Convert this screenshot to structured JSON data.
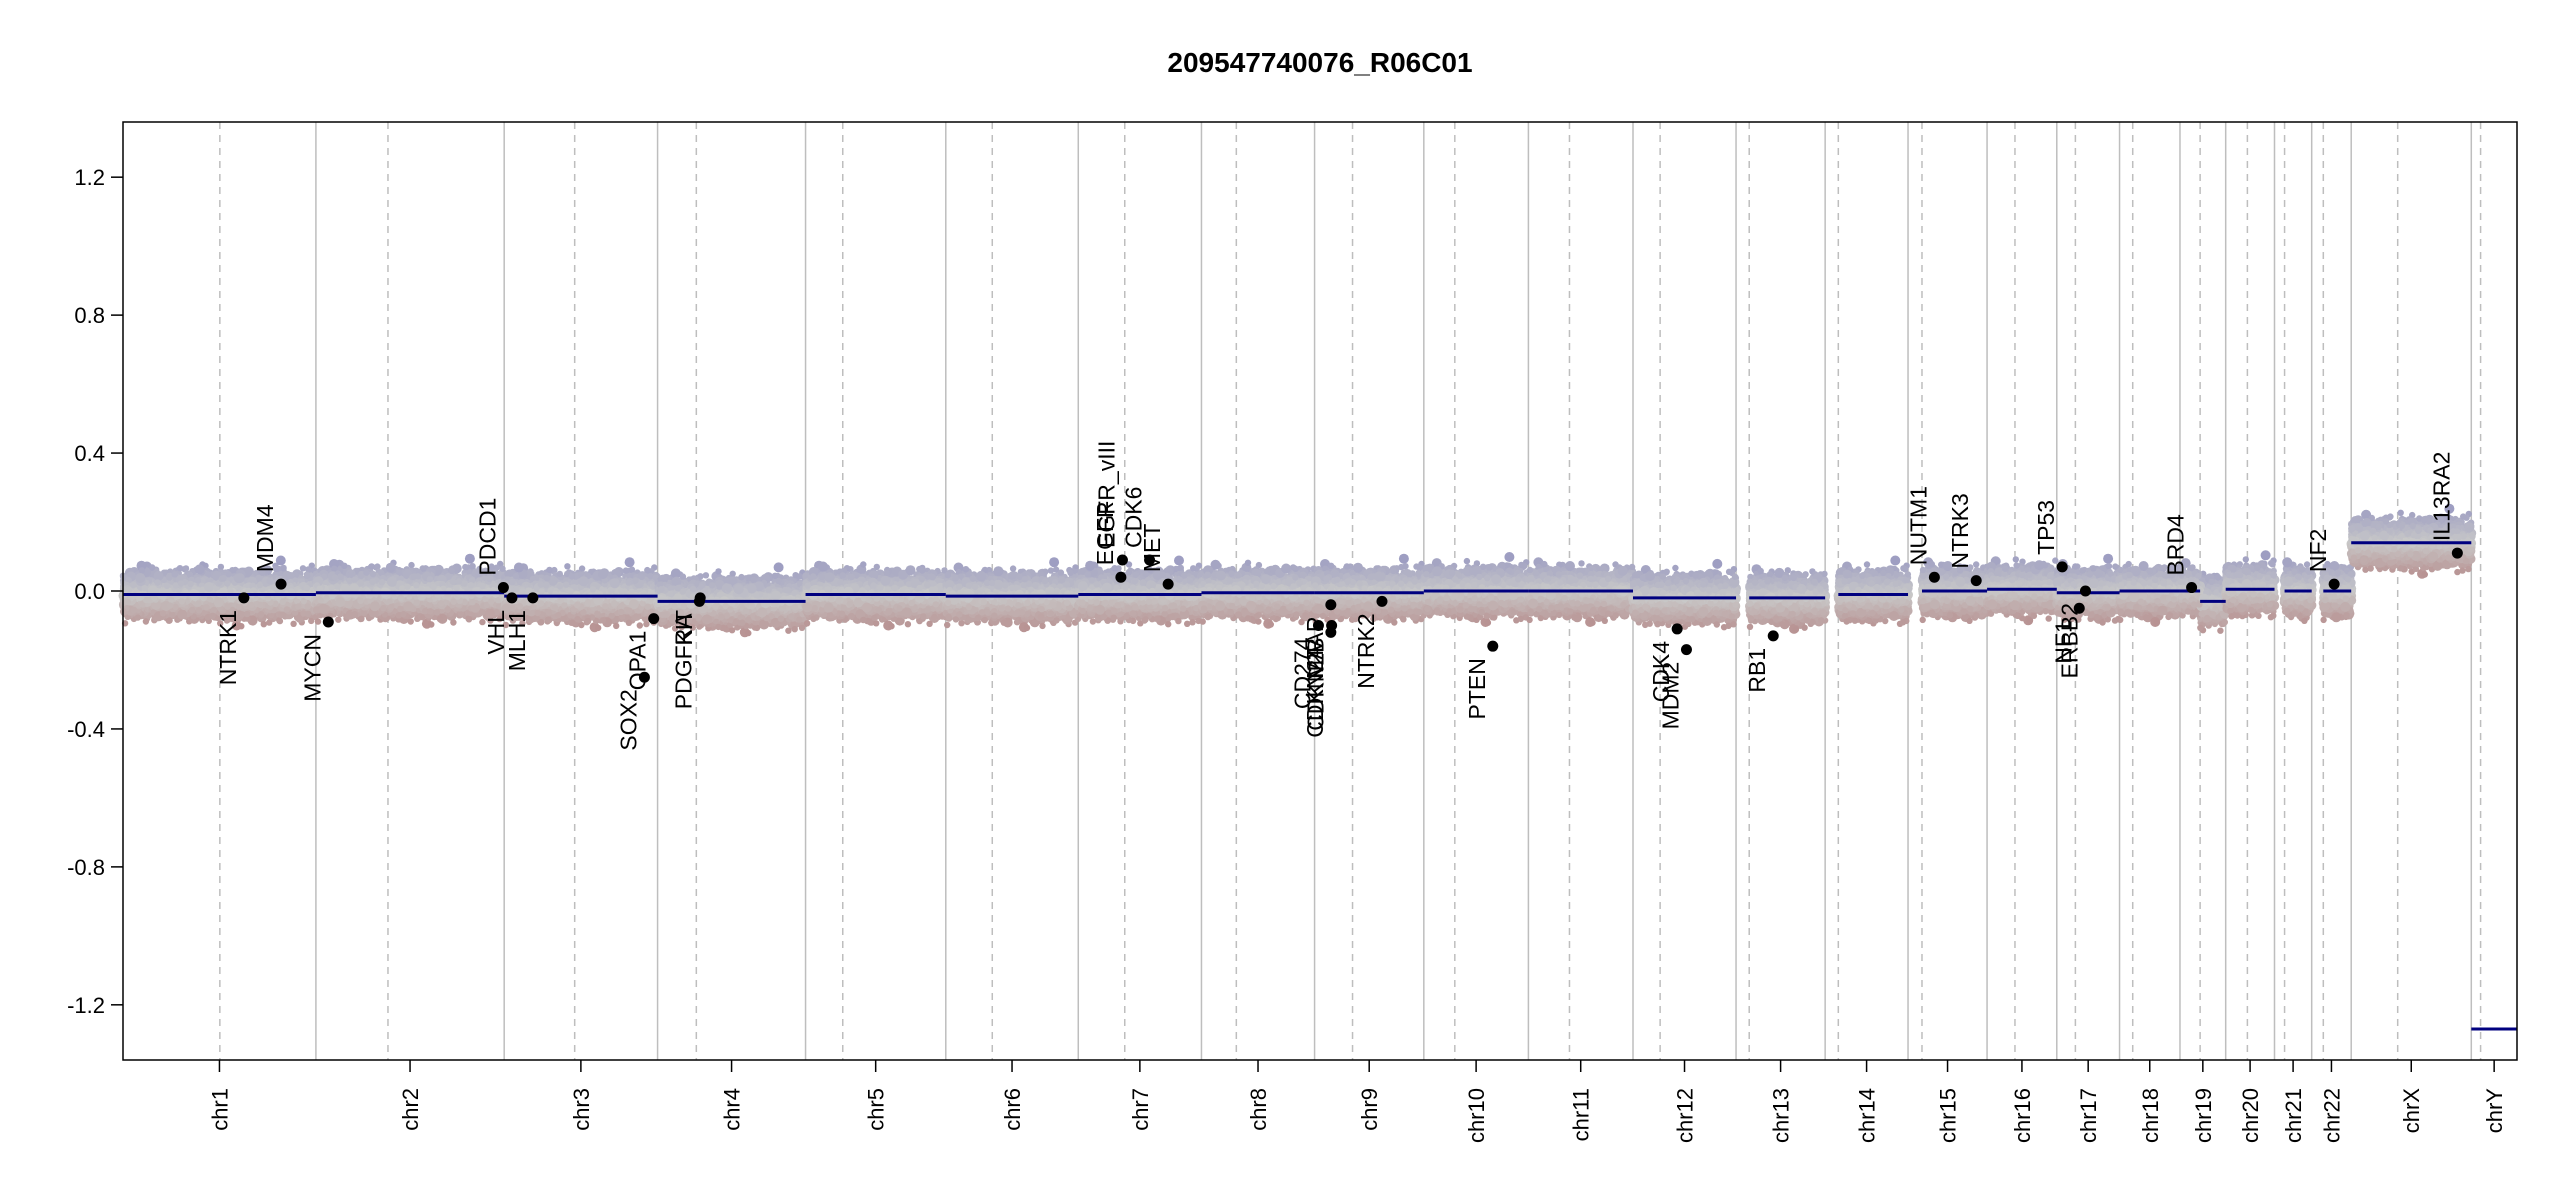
{
  "chart_data": {
    "type": "scatter",
    "title": "209547740076_R06C01",
    "xlabel": "",
    "ylabel": "",
    "ylim": [
      -1.36,
      1.36
    ],
    "yticks": [
      1.2,
      0.8,
      0.4,
      0.0,
      -0.4,
      -0.8,
      -1.2
    ],
    "ytick_labels": [
      "1.2",
      "0.8",
      "0.4",
      "0.0",
      "-0.4",
      "-0.8",
      "-1.2"
    ],
    "grid": false,
    "colors": {
      "gain": "#8c8cc0",
      "loss": "#b07878",
      "neutral": "#c8c8c8",
      "segment": "#00007f",
      "chrom_border": "#bebebe",
      "centromere": "#bebebe",
      "gene_point": "#000000"
    },
    "chromosomes": [
      {
        "name": "chr1",
        "size": 249,
        "cen": 125,
        "segments": [
          {
            "start": 0,
            "end": 249,
            "value": -0.01
          }
        ]
      },
      {
        "name": "chr2",
        "size": 243,
        "cen": 93,
        "segments": [
          {
            "start": 0,
            "end": 243,
            "value": -0.005
          }
        ]
      },
      {
        "name": "chr3",
        "size": 198,
        "cen": 91,
        "segments": [
          {
            "start": 0,
            "end": 198,
            "value": -0.015
          }
        ]
      },
      {
        "name": "chr4",
        "size": 191,
        "cen": 50,
        "segments": [
          {
            "start": 0,
            "end": 191,
            "value": -0.03
          }
        ]
      },
      {
        "name": "chr5",
        "size": 181,
        "cen": 48,
        "segments": [
          {
            "start": 0,
            "end": 181,
            "value": -0.01
          }
        ]
      },
      {
        "name": "chr6",
        "size": 171,
        "cen": 60,
        "segments": [
          {
            "start": 0,
            "end": 171,
            "value": -0.015
          }
        ]
      },
      {
        "name": "chr7",
        "size": 159,
        "cen": 60,
        "segments": [
          {
            "start": 0,
            "end": 159,
            "value": -0.01
          }
        ]
      },
      {
        "name": "chr8",
        "size": 146,
        "cen": 45,
        "segments": [
          {
            "start": 0,
            "end": 146,
            "value": -0.005
          }
        ]
      },
      {
        "name": "chr9",
        "size": 141,
        "cen": 49,
        "segments": [
          {
            "start": 0,
            "end": 141,
            "value": -0.005
          }
        ]
      },
      {
        "name": "chr10",
        "size": 135,
        "cen": 40,
        "segments": [
          {
            "start": 0,
            "end": 135,
            "value": 0.0
          }
        ]
      },
      {
        "name": "chr11",
        "size": 135,
        "cen": 53,
        "segments": [
          {
            "start": 0,
            "end": 135,
            "value": 0.0
          }
        ]
      },
      {
        "name": "chr12",
        "size": 133,
        "cen": 35,
        "segments": [
          {
            "start": 0,
            "end": 133,
            "value": -0.02
          }
        ]
      },
      {
        "name": "chr13",
        "size": 115,
        "cen": 17,
        "segments": [
          {
            "start": 17,
            "end": 115,
            "value": -0.02
          }
        ]
      },
      {
        "name": "chr14",
        "size": 107,
        "cen": 17,
        "segments": [
          {
            "start": 17,
            "end": 107,
            "value": -0.01
          }
        ]
      },
      {
        "name": "chr15",
        "size": 102,
        "cen": 18,
        "segments": [
          {
            "start": 18,
            "end": 102,
            "value": 0.0
          }
        ]
      },
      {
        "name": "chr16",
        "size": 90,
        "cen": 36,
        "segments": [
          {
            "start": 0,
            "end": 90,
            "value": 0.005
          }
        ]
      },
      {
        "name": "chr17",
        "size": 81,
        "cen": 24,
        "segments": [
          {
            "start": 0,
            "end": 81,
            "value": -0.005
          }
        ]
      },
      {
        "name": "chr18",
        "size": 78,
        "cen": 17,
        "segments": [
          {
            "start": 0,
            "end": 78,
            "value": 0.0
          }
        ]
      },
      {
        "name": "chr19",
        "size": 59,
        "cen": 26,
        "segments": [
          {
            "start": 0,
            "end": 26,
            "value": 0.0
          },
          {
            "start": 26,
            "end": 59,
            "value": -0.03
          }
        ]
      },
      {
        "name": "chr20",
        "size": 63,
        "cen": 28,
        "segments": [
          {
            "start": 0,
            "end": 63,
            "value": 0.005
          }
        ]
      },
      {
        "name": "chr21",
        "size": 48,
        "cen": 13,
        "segments": [
          {
            "start": 13,
            "end": 48,
            "value": 0.0
          }
        ]
      },
      {
        "name": "chr22",
        "size": 51,
        "cen": 15,
        "segments": [
          {
            "start": 15,
            "end": 51,
            "value": 0.0
          }
        ]
      },
      {
        "name": "chrX",
        "size": 155,
        "cen": 60,
        "segments": [
          {
            "start": 0,
            "end": 155,
            "value": 0.14
          }
        ]
      },
      {
        "name": "chrY",
        "size": 59,
        "cen": 12,
        "segments": [
          {
            "start": 0,
            "end": 59,
            "value": -1.27
          }
        ]
      }
    ],
    "genes": [
      {
        "name": "NTRK1",
        "chr": "chr1",
        "pos": 156,
        "value": -0.02,
        "side": "below"
      },
      {
        "name": "MDM4",
        "chr": "chr1",
        "pos": 204,
        "value": 0.02,
        "side": "above"
      },
      {
        "name": "MYCN",
        "chr": "chr2",
        "pos": 16,
        "value": -0.09,
        "side": "below"
      },
      {
        "name": "PDCD1",
        "chr": "chr2",
        "pos": 242,
        "value": 0.01,
        "side": "above"
      },
      {
        "name": "VHL",
        "chr": "chr3",
        "pos": 10,
        "value": -0.02,
        "side": "below"
      },
      {
        "name": "MLH1",
        "chr": "chr3",
        "pos": 37,
        "value": -0.02,
        "side": "below"
      },
      {
        "name": "SOX2",
        "chr": "chr3",
        "pos": 181,
        "value": -0.25,
        "side": "below"
      },
      {
        "name": "OPA1",
        "chr": "chr3",
        "pos": 193,
        "value": -0.08,
        "side": "below"
      },
      {
        "name": "KIT",
        "chr": "chr4",
        "pos": 55,
        "value": -0.02,
        "side": "below"
      },
      {
        "name": "PDGFRA",
        "chr": "chr4",
        "pos": 54,
        "value": -0.03,
        "side": "below"
      },
      {
        "name": "CDK6",
        "chr": "chr7",
        "pos": 92,
        "value": 0.09,
        "side": "above"
      },
      {
        "name": "EGFR",
        "chr": "chr7",
        "pos": 55,
        "value": 0.04,
        "side": "above"
      },
      {
        "name": "EGFR_vIII",
        "chr": "chr7",
        "pos": 57,
        "value": 0.09,
        "side": "above"
      },
      {
        "name": "MET",
        "chr": "chr7",
        "pos": 116,
        "value": 0.02,
        "side": "above"
      },
      {
        "name": "CD274",
        "chr": "chr9",
        "pos": 5,
        "value": -0.1,
        "side": "below"
      },
      {
        "name": "CDKN2A",
        "chr": "chr9",
        "pos": 21,
        "value": -0.12,
        "side": "below"
      },
      {
        "name": "CDKN2B",
        "chr": "chr9",
        "pos": 22,
        "value": -0.1,
        "side": "below"
      },
      {
        "name": "MTAP",
        "chr": "chr9",
        "pos": 21,
        "value": -0.04,
        "side": "below"
      },
      {
        "name": "NTRK2",
        "chr": "chr9",
        "pos": 87,
        "value": -0.03,
        "side": "below"
      },
      {
        "name": "PTEN",
        "chr": "chr10",
        "pos": 89,
        "value": -0.16,
        "side": "below"
      },
      {
        "name": "CDK4",
        "chr": "chr12",
        "pos": 57,
        "value": -0.11,
        "side": "below"
      },
      {
        "name": "MDM2",
        "chr": "chr12",
        "pos": 69,
        "value": -0.17,
        "side": "below"
      },
      {
        "name": "RB1",
        "chr": "chr13",
        "pos": 48,
        "value": -0.13,
        "side": "below"
      },
      {
        "name": "NUTM1",
        "chr": "chr15",
        "pos": 34,
        "value": 0.04,
        "side": "above"
      },
      {
        "name": "NTRK3",
        "chr": "chr15",
        "pos": 88,
        "value": 0.03,
        "side": "above"
      },
      {
        "name": "TP53",
        "chr": "chr17",
        "pos": 7,
        "value": 0.07,
        "side": "above"
      },
      {
        "name": "NF1",
        "chr": "chr17",
        "pos": 29,
        "value": -0.05,
        "side": "below"
      },
      {
        "name": "ERBB2",
        "chr": "chr17",
        "pos": 37,
        "value": 0.0,
        "side": "below"
      },
      {
        "name": "BRD4",
        "chr": "chr19",
        "pos": 15,
        "value": 0.01,
        "side": "above"
      },
      {
        "name": "NF2",
        "chr": "chr22",
        "pos": 29,
        "value": 0.02,
        "side": "above"
      },
      {
        "name": "IL13RA2",
        "chr": "chrX",
        "pos": 137,
        "value": 0.11,
        "side": "above"
      }
    ]
  }
}
